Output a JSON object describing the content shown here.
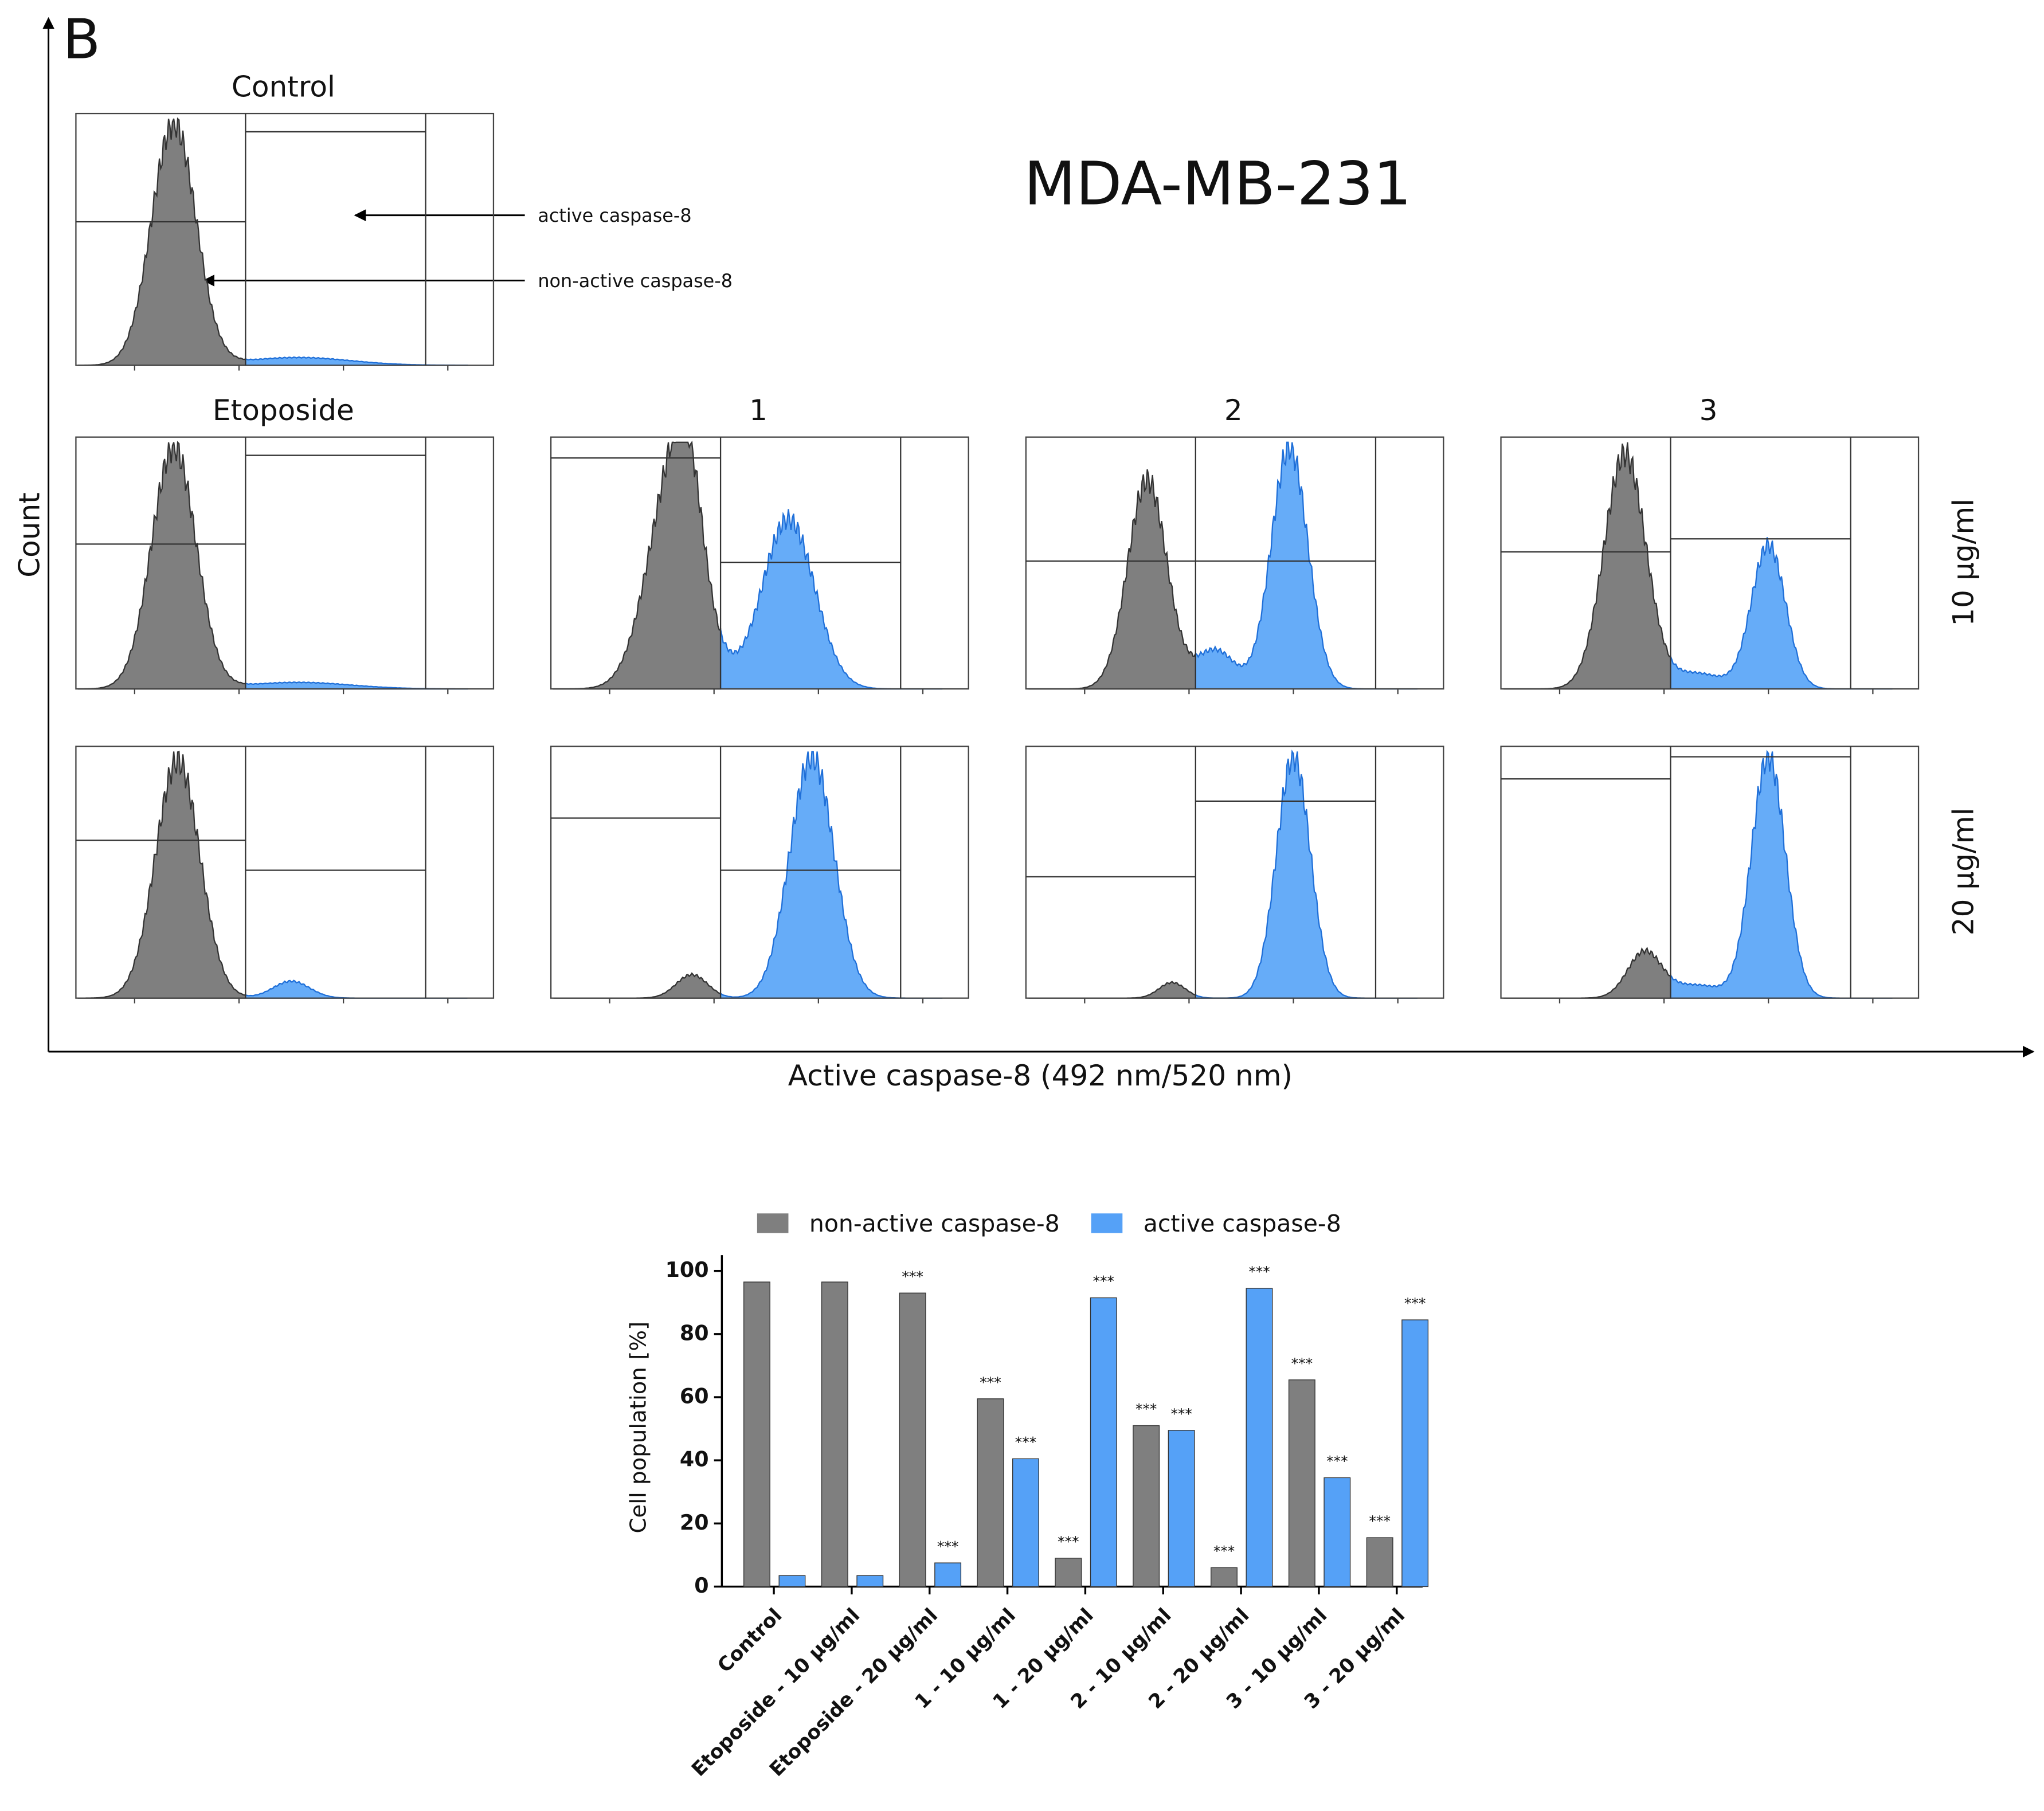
{
  "figure": {
    "panel_letter": "B",
    "cell_line": "MDA-MB-231",
    "y_axis_label": "Count",
    "x_axis_label": "Active caspase-8 (492 nm/520 nm)",
    "panel_titles": [
      "Control",
      "Etoposide",
      "1",
      "2",
      "3"
    ],
    "row_labels": [
      "10 µg/ml",
      "20 µg/ml"
    ],
    "annotations": [
      "active caspase-8",
      "non-active caspase-8"
    ]
  },
  "chart_data": {
    "type": "bar",
    "ylabel": "Cell population [%]",
    "categories": [
      "Control",
      "Etoposide - 10 µg/ml",
      "Etoposide - 20 µg/ml",
      "1 - 10 µg/ml",
      "1 - 20 µg/ml",
      "2 - 10 µg/ml",
      "2 - 20 µg/ml",
      "3 - 10 µg/ml",
      "3 - 20 µg/ml"
    ],
    "series": [
      {
        "name": "non-active caspase-8",
        "color": "#7f7f7f",
        "values": [
          96.5,
          96.5,
          93,
          59.5,
          9,
          51,
          6,
          65.5,
          15.5
        ],
        "significance": [
          null,
          null,
          "***",
          "***",
          "***",
          "***",
          "***",
          "***",
          "***"
        ]
      },
      {
        "name": "active caspase-8",
        "color": "#55a1f7",
        "values": [
          3.5,
          3.5,
          7.5,
          40.5,
          91.5,
          49.5,
          94.5,
          34.5,
          84.5
        ],
        "significance": [
          null,
          null,
          "***",
          "***",
          "***",
          "***",
          "***",
          "***",
          "***"
        ]
      }
    ],
    "ylim": [
      0,
      105
    ],
    "yticks": [
      0,
      20,
      40,
      60,
      80,
      100
    ],
    "grid": false,
    "legend": "top"
  }
}
